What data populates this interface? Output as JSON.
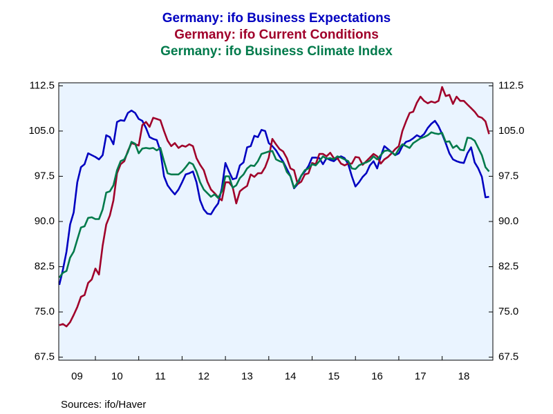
{
  "chart_data": {
    "type": "line",
    "titles": [
      "Germany: ifo Business Expectations",
      "Germany: ifo Current Conditions",
      "Germany: ifo Business Climate Index"
    ],
    "source": "Sources:  ifo/Haver",
    "x": [
      2009.167,
      2009.25,
      2009.333,
      2009.417,
      2009.5,
      2009.583,
      2009.667,
      2009.75,
      2009.833,
      2009.917,
      2010,
      2010.083,
      2010.167,
      2010.25,
      2010.333,
      2010.417,
      2010.5,
      2010.583,
      2010.667,
      2010.75,
      2010.833,
      2010.917,
      2011,
      2011.083,
      2011.167,
      2011.25,
      2011.333,
      2011.417,
      2011.5,
      2011.583,
      2011.667,
      2011.75,
      2011.833,
      2011.917,
      2012,
      2012.083,
      2012.167,
      2012.25,
      2012.333,
      2012.417,
      2012.5,
      2012.583,
      2012.667,
      2012.75,
      2012.833,
      2012.917,
      2013,
      2013.083,
      2013.167,
      2013.25,
      2013.333,
      2013.417,
      2013.5,
      2013.583,
      2013.667,
      2013.75,
      2013.833,
      2013.917,
      2014,
      2014.083,
      2014.167,
      2014.25,
      2014.333,
      2014.417,
      2014.5,
      2014.583,
      2014.667,
      2014.75,
      2014.833,
      2014.917,
      2015,
      2015.083,
      2015.167,
      2015.25,
      2015.333,
      2015.417,
      2015.5,
      2015.583,
      2015.667,
      2015.75,
      2015.833,
      2015.917,
      2016,
      2016.083,
      2016.167,
      2016.25,
      2016.333,
      2016.417,
      2016.5,
      2016.583,
      2016.667,
      2016.75,
      2016.833,
      2016.917,
      2017,
      2017.083,
      2017.167,
      2017.25,
      2017.333,
      2017.417,
      2017.5,
      2017.583,
      2017.667,
      2017.75,
      2017.833,
      2017.917,
      2018,
      2018.083,
      2018.167,
      2018.25,
      2018.333,
      2018.417,
      2018.5,
      2018.583,
      2018.667,
      2018.75,
      2018.833,
      2018.917,
      2019,
      2019.083
    ],
    "series": [
      {
        "name": "Germany: ifo Business Expectations",
        "color": "#0000c0",
        "values": [
          79.5,
          82,
          85,
          89.5,
          91.5,
          96.5,
          99,
          99.5,
          101.3,
          101,
          100.7,
          100.3,
          101,
          104.3,
          104,
          102.8,
          106.5,
          106.8,
          106.7,
          108,
          108.4,
          108,
          107,
          106.7,
          105.5,
          104,
          103.7,
          103.5,
          101.7,
          97.5,
          96,
          95.2,
          94.5,
          95.3,
          96.5,
          97.8,
          98,
          98.3,
          96.5,
          93.5,
          92,
          91.3,
          91.2,
          92.2,
          93,
          95.5,
          99.7,
          98.3,
          97,
          97.2,
          99.3,
          99.8,
          102.3,
          102.5,
          104.2,
          104,
          105.2,
          105,
          103,
          102.5,
          101.8,
          100.8,
          99.9,
          98.7,
          97.5,
          95.5,
          96.2,
          97.6,
          98.3,
          99.2,
          100.6,
          100.6,
          100.5,
          99.5,
          100.5,
          100.2,
          100,
          100.5,
          100.8,
          100.5,
          99.5,
          97.5,
          95.8,
          96.5,
          97.4,
          98,
          99.3,
          100,
          98.8,
          100.8,
          102.5,
          102,
          101.5,
          101,
          101.3,
          102.5,
          103.2,
          103.4,
          103.8,
          104.3,
          104,
          104.5,
          105.5,
          106.2,
          106.7,
          105.8,
          104.5,
          103,
          101.3,
          100.3,
          100,
          99.8,
          99.7,
          101.3,
          102.3,
          99.8,
          98.8,
          97.4,
          94,
          94.1
        ]
      },
      {
        "name": "Germany: ifo Current Conditions",
        "color": "#a0002a",
        "values": [
          72.8,
          73,
          72.6,
          73.3,
          74.5,
          75.8,
          77.5,
          77.8,
          79.8,
          80.4,
          82.2,
          81.2,
          86,
          89.5,
          91,
          93.5,
          98,
          99.5,
          100,
          101.7,
          103,
          102.8,
          102.6,
          106,
          106.5,
          105.7,
          107.2,
          107,
          106.8,
          105,
          103.4,
          102.5,
          103,
          102.2,
          102.6,
          102.4,
          102.8,
          102.5,
          100.5,
          99.4,
          98.5,
          96.6,
          95.3,
          94.7,
          94,
          93.5,
          96.5,
          96.5,
          95.7,
          93,
          95,
          95.5,
          95.9,
          97.8,
          97.4,
          98,
          98,
          99,
          100.6,
          103.7,
          102.8,
          102,
          101.6,
          100.5,
          98.8,
          98.5,
          96.2,
          96.6,
          97.8,
          98,
          99.7,
          99.5,
          101.2,
          101.2,
          100.8,
          101.4,
          100.5,
          100.5,
          99.6,
          99.3,
          99.6,
          99.6,
          100.7,
          100.6,
          99.4,
          100,
          100.6,
          101.2,
          100.8,
          99.6,
          100.3,
          100.7,
          101.3,
          102,
          102.5,
          105,
          106.6,
          108,
          108.2,
          109.7,
          110.7,
          110,
          109.6,
          109.9,
          109.7,
          110,
          112.3,
          110.8,
          111,
          109.5,
          110.7,
          110,
          110,
          109.4,
          108.8,
          108.2,
          107.4,
          107.2,
          106.6,
          104.5
        ]
      },
      {
        "name": "Germany: ifo Business Climate Index",
        "color": "#007a4b",
        "values": [
          80.7,
          81.5,
          81.8,
          84,
          85,
          87,
          89,
          89.2,
          90.6,
          90.7,
          90.4,
          90.4,
          92,
          94.8,
          95,
          96,
          98.5,
          100,
          100.3,
          101.5,
          103.2,
          102.9,
          101.3,
          102.1,
          102.2,
          102.1,
          102.2,
          101.8,
          102.2,
          100,
          98,
          97.8,
          97.8,
          97.8,
          98.3,
          99,
          99.8,
          99.5,
          98.3,
          96.5,
          95.3,
          94.7,
          94.1,
          94.5,
          93.9,
          95,
          97.5,
          97.5,
          95.6,
          96,
          97.2,
          97.8,
          98.8,
          99.3,
          99.2,
          100,
          101.2,
          101.4,
          101.6,
          101.7,
          100.3,
          100,
          99.8,
          98.2,
          97.5,
          95.6,
          96.5,
          97.6,
          98.5,
          98.8,
          99.5,
          99.3,
          100,
          100.8,
          100.4,
          100.5,
          100.3,
          100.8,
          100.6,
          100.3,
          100,
          98.8,
          98.7,
          99.3,
          99.6,
          99.8,
          100.1,
          100.8,
          100.3,
          101,
          101.7,
          101.8,
          101.5,
          101,
          102,
          102.8,
          102.5,
          102.2,
          103,
          103.4,
          103.8,
          104,
          104.3,
          104.8,
          104.6,
          104.5,
          104.7,
          103.2,
          103.3,
          102.2,
          102.6,
          101.9,
          101.8,
          103.9,
          103.8,
          103.4,
          102.2,
          101,
          99,
          98.3
        ]
      }
    ],
    "xlim": [
      2009.155,
      2019.17
    ],
    "xticks": [
      {
        "value": 2009,
        "label": "09"
      },
      {
        "value": 2010,
        "label": "10"
      },
      {
        "value": 2011,
        "label": "11"
      },
      {
        "value": 2012,
        "label": "12"
      },
      {
        "value": 2013,
        "label": "13"
      },
      {
        "value": 2014,
        "label": "14"
      },
      {
        "value": 2015,
        "label": "15"
      },
      {
        "value": 2016,
        "label": "16"
      },
      {
        "value": 2017,
        "label": "17"
      },
      {
        "value": 2018,
        "label": "18"
      }
    ],
    "ylim": [
      67,
      113
    ],
    "yticks": [
      67.5,
      {
        "value": 75,
        "label": "75.0"
      },
      82.5,
      {
        "value": 90,
        "label": "90.0"
      },
      97.5,
      {
        "value": 105,
        "label": "105.0"
      },
      112.5
    ],
    "y2lim": [
      67,
      113
    ],
    "y2ticks": [
      67.5,
      {
        "value": 75,
        "label": "75.0"
      },
      82.5,
      {
        "value": 90,
        "label": "90.0"
      },
      97.5,
      {
        "value": 105,
        "label": "105.0"
      },
      112.5
    ],
    "background": "#eaf4ff"
  }
}
